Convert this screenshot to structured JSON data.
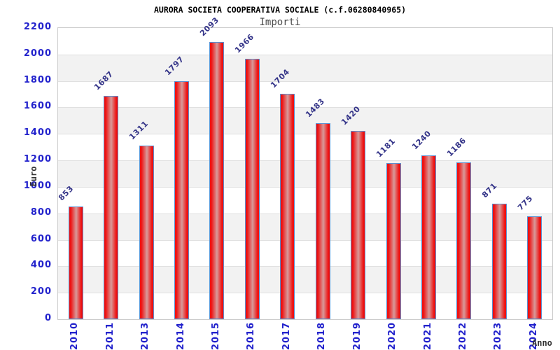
{
  "header": {
    "title": "AURORA SOCIETA COOPERATIVA SOCIALE (c.f.06280840965)",
    "subtitle": "Importi"
  },
  "chart_data": {
    "type": "bar",
    "title": "AURORA SOCIETA COOPERATIVA SOCIALE (c.f.06280840965)",
    "subtitle": "Importi",
    "xlabel": "Anno",
    "ylabel": "Euro",
    "categories": [
      "2010",
      "2011",
      "2013",
      "2014",
      "2015",
      "2016",
      "2017",
      "2018",
      "2019",
      "2020",
      "2021",
      "2022",
      "2023",
      "2024"
    ],
    "values": [
      853,
      1687,
      1311,
      1797,
      2093,
      1966,
      1704,
      1483,
      1420,
      1181,
      1240,
      1186,
      871,
      775
    ],
    "ylim": [
      0,
      2200
    ],
    "ytick_step": 200,
    "grid": true,
    "legend": "none",
    "bar_value_labels": true
  },
  "colors": {
    "bar_fill": "#ee1111",
    "bar_highlight": "#d89a9a",
    "bar_border": "#5b8fd0",
    "tick_label": "#2222cc",
    "value_label": "#333388",
    "band_gray": "#f2f2f2",
    "band_white": "#ffffff",
    "grid_line": "#e0e0e0",
    "plot_border": "#cccccc",
    "title": "#000000",
    "subtitle": "#4a4a4a",
    "axis_title": "#333333"
  }
}
